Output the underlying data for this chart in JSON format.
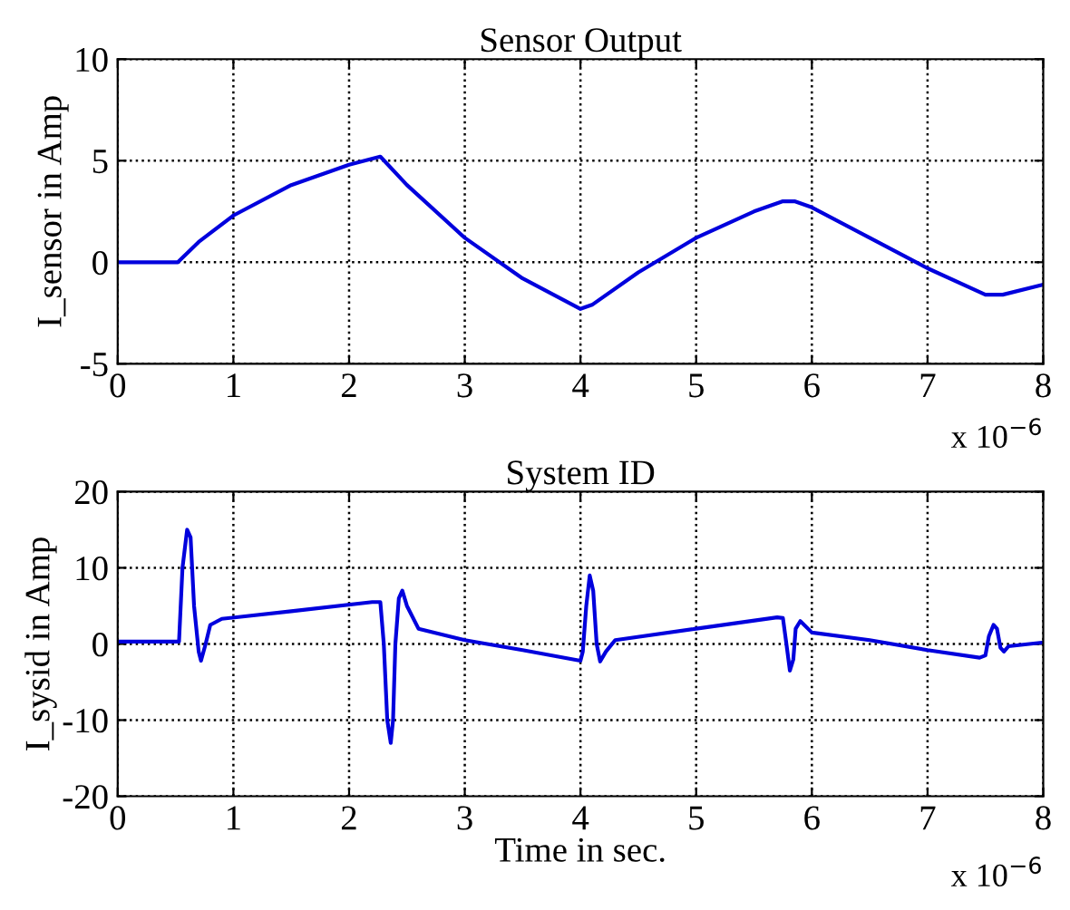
{
  "chart_data": [
    {
      "type": "line",
      "title": "Sensor Output",
      "ylabel": "I_sensor in Amp",
      "annotations": [
        "x 10$^{−6}$"
      ],
      "xlim": [
        0,
        8
      ],
      "xticks": [
        0,
        1,
        2,
        3,
        4,
        5,
        6,
        7,
        8
      ],
      "ylim": [
        -5,
        10
      ],
      "yticks": [
        -5,
        0,
        5,
        10
      ],
      "grid": true,
      "line_style": "solid",
      "series": [
        {
          "color": "#0000dd",
          "x": [
            0,
            0.52,
            0.7,
            1,
            1.5,
            2,
            2.27,
            2.5,
            3,
            3.5,
            4,
            4.1,
            4.5,
            5,
            5.5,
            5.75,
            5.85,
            6,
            6.5,
            7,
            7.5,
            7.65,
            8
          ],
          "values": [
            0,
            0,
            1,
            2.3,
            3.8,
            4.8,
            5.2,
            3.8,
            1.2,
            -0.8,
            -2.3,
            -2.1,
            -0.5,
            1.2,
            2.5,
            3.0,
            3.0,
            2.7,
            1.2,
            -0.3,
            -1.6,
            -1.6,
            -1.1
          ]
        }
      ]
    },
    {
      "type": "line",
      "title": "System ID",
      "xlabel": "Time in sec.",
      "ylabel": "I_sysid in Amp",
      "annotations": [
        "x 10$^{−6}$"
      ],
      "xlim": [
        0,
        8
      ],
      "xticks": [
        0,
        1,
        2,
        3,
        4,
        5,
        6,
        7,
        8
      ],
      "ylim": [
        -20,
        20
      ],
      "yticks": [
        -20,
        -10,
        0,
        10,
        20
      ],
      "grid": true,
      "line_style": "solid",
      "series": [
        {
          "color": "#0000dd",
          "x": [
            0,
            0.53,
            0.56,
            0.6,
            0.63,
            0.66,
            0.7,
            0.72,
            0.76,
            0.8,
            0.9,
            1.5,
            2.2,
            2.27,
            2.3,
            2.33,
            2.36,
            2.38,
            2.4,
            2.43,
            2.46,
            2.5,
            2.6,
            3,
            3.5,
            4,
            4.02,
            4.05,
            4.08,
            4.11,
            4.14,
            4.17,
            4.22,
            4.3,
            5,
            5.7,
            5.75,
            5.78,
            5.81,
            5.84,
            5.86,
            5.9,
            6,
            6.5,
            7,
            7.45,
            7.5,
            7.53,
            7.57,
            7.6,
            7.63,
            7.66,
            7.7,
            8
          ],
          "values": [
            0.3,
            0.3,
            10,
            15,
            14,
            5,
            -1,
            -2.2,
            0,
            2.5,
            3.3,
            4.3,
            5.5,
            5.5,
            0,
            -10,
            -13,
            -10,
            0,
            6,
            7,
            5,
            2,
            0.5,
            -0.8,
            -2.2,
            -1,
            5,
            9,
            7,
            0,
            -2.3,
            -1,
            0.5,
            2,
            3.5,
            3.4,
            0,
            -3.5,
            -2,
            2,
            3,
            1.5,
            0.5,
            -0.8,
            -1.8,
            -1.5,
            1,
            2.5,
            2,
            -0.5,
            -1,
            -0.3,
            0.2
          ]
        }
      ]
    }
  ]
}
